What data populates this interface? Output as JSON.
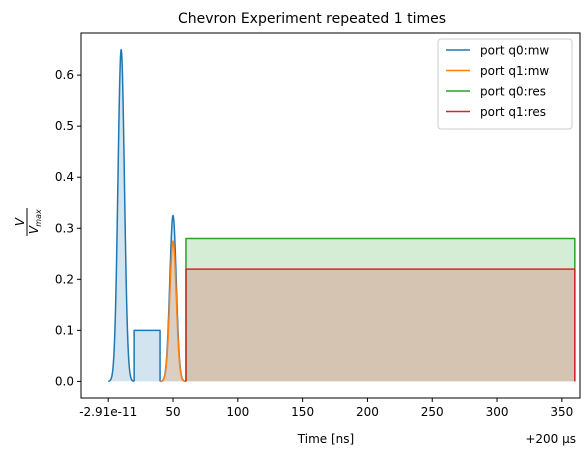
{
  "chart_data": {
    "type": "line",
    "title": "Chevron Experiment repeated 1 times",
    "xlabel": "Time [ns]",
    "ylabel_main": "V",
    "ylabel_sub": "max",
    "x_offset_label": "+200 µs",
    "xlim": [
      -21,
      364
    ],
    "ylim": [
      -0.0325,
      0.6825
    ],
    "xticks": [
      {
        "value": 0,
        "label": "-2.91e-11"
      },
      {
        "value": 50,
        "label": "50"
      },
      {
        "value": 100,
        "label": "100"
      },
      {
        "value": 150,
        "label": "150"
      },
      {
        "value": 200,
        "label": "200"
      },
      {
        "value": 250,
        "label": "250"
      },
      {
        "value": 300,
        "label": "300"
      },
      {
        "value": 350,
        "label": "350"
      }
    ],
    "yticks": [
      {
        "value": 0.0,
        "label": "0.0"
      },
      {
        "value": 0.1,
        "label": "0.1"
      },
      {
        "value": 0.2,
        "label": "0.2"
      },
      {
        "value": 0.3,
        "label": "0.3"
      },
      {
        "value": 0.4,
        "label": "0.4"
      },
      {
        "value": 0.5,
        "label": "0.5"
      },
      {
        "value": 0.6,
        "label": "0.6"
      }
    ],
    "legend_position": "top-right",
    "series": [
      {
        "name": "port q0:mw",
        "color": "#1f77b4",
        "fill_alpha": 0.2,
        "segments": [
          {
            "shape": "gaussian",
            "x_start": 0,
            "x_end": 20,
            "center": 10,
            "sigma": 2.5,
            "amplitude": 0.65
          },
          {
            "shape": "square",
            "x_start": 20,
            "x_end": 40,
            "amplitude": 0.1
          },
          {
            "shape": "gaussian",
            "x_start": 40,
            "x_end": 60,
            "center": 50,
            "sigma": 2.5,
            "amplitude": 0.325
          }
        ]
      },
      {
        "name": "port q1:mw",
        "color": "#ff7f0e",
        "fill_alpha": 0.2,
        "segments": [
          {
            "shape": "gaussian",
            "x_start": 40,
            "x_end": 60,
            "center": 50,
            "sigma": 2.5,
            "amplitude": 0.275
          }
        ]
      },
      {
        "name": "port q0:res",
        "color": "#2ca02c",
        "fill_alpha": 0.2,
        "segments": [
          {
            "shape": "square",
            "x_start": 60,
            "x_end": 360,
            "amplitude": 0.28
          }
        ]
      },
      {
        "name": "port q1:res",
        "color": "#d62728",
        "fill_alpha": 0.2,
        "segments": [
          {
            "shape": "square",
            "x_start": 60,
            "x_end": 360,
            "amplitude": 0.22
          }
        ]
      }
    ]
  }
}
